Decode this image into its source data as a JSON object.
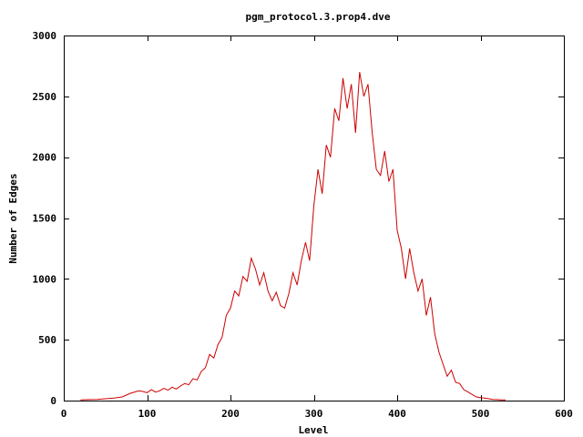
{
  "chart_data": {
    "type": "line",
    "title": "pgm_protocol.3.prop4.dve",
    "xlabel": "Level",
    "ylabel": "Number of Edges",
    "xlim": [
      0,
      600
    ],
    "ylim": [
      0,
      3000
    ],
    "x_ticks": [
      0,
      100,
      200,
      300,
      400,
      500,
      600
    ],
    "y_ticks": [
      0,
      500,
      1000,
      1500,
      2000,
      2500,
      3000
    ],
    "grid": false,
    "legend": "none",
    "series_color": "#cc0000",
    "series": [
      {
        "x": [
          20,
          30,
          40,
          50,
          60,
          70,
          75,
          80,
          85,
          90,
          95,
          100,
          105,
          110,
          115,
          120,
          125,
          130,
          135,
          140,
          145,
          150,
          155,
          160,
          165,
          170,
          175,
          180,
          185,
          190,
          195,
          200,
          205,
          210,
          215,
          220,
          225,
          230,
          235,
          240,
          245,
          250,
          255,
          260,
          265,
          270,
          275,
          280,
          285,
          290,
          295,
          300,
          305,
          310,
          315,
          320,
          325,
          330,
          335,
          340,
          345,
          350,
          355,
          360,
          365,
          370,
          375,
          380,
          385,
          390,
          395,
          400,
          405,
          410,
          415,
          420,
          425,
          430,
          435,
          440,
          445,
          450,
          455,
          460,
          465,
          470,
          475,
          480,
          485,
          490,
          495,
          500,
          505,
          510,
          515,
          520,
          525,
          530
        ],
        "y": [
          5,
          8,
          10,
          15,
          20,
          30,
          45,
          60,
          70,
          80,
          75,
          65,
          90,
          70,
          80,
          100,
          85,
          110,
          95,
          120,
          140,
          130,
          180,
          170,
          240,
          270,
          380,
          350,
          460,
          520,
          700,
          760,
          900,
          860,
          1020,
          980,
          1170,
          1080,
          950,
          1050,
          900,
          820,
          890,
          780,
          760,
          880,
          1050,
          950,
          1150,
          1300,
          1150,
          1600,
          1900,
          1700,
          2100,
          2000,
          2400,
          2300,
          2650,
          2400,
          2600,
          2200,
          2700,
          2500,
          2600,
          2200,
          1900,
          1850,
          2050,
          1800,
          1900,
          1400,
          1250,
          1000,
          1250,
          1050,
          900,
          1000,
          700,
          850,
          550,
          400,
          300,
          200,
          250,
          150,
          140,
          90,
          70,
          50,
          30,
          25,
          20,
          15,
          10,
          8,
          5,
          5
        ]
      }
    ]
  }
}
